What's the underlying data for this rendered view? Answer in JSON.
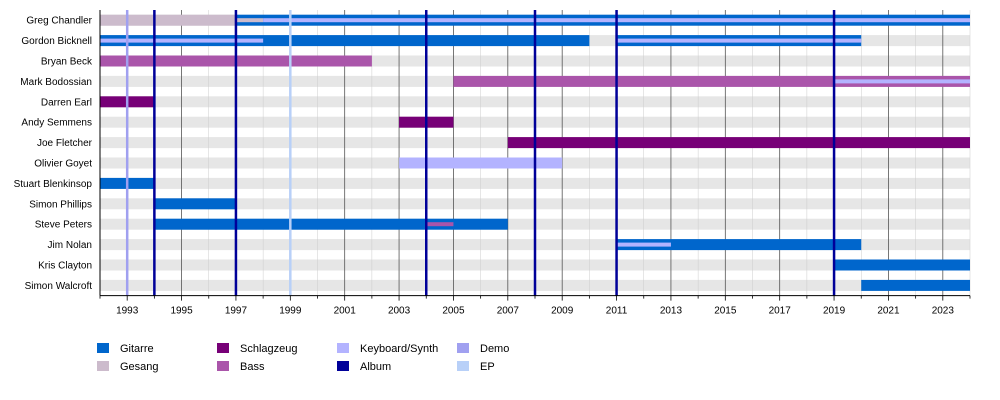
{
  "chart_data": {
    "type": "timeline",
    "x_range": [
      1992,
      2024
    ],
    "year_ticks": [
      1993,
      1995,
      1997,
      1999,
      2001,
      2003,
      2005,
      2007,
      2009,
      2011,
      2013,
      2015,
      2017,
      2019,
      2021,
      2023
    ],
    "roles": [
      {
        "id": "gitarre",
        "label": "Gitarre",
        "color": "#0066cc"
      },
      {
        "id": "gesang",
        "label": "Gesang",
        "color": "#ccbbcc"
      },
      {
        "id": "schlagzeug",
        "label": "Schlagzeug",
        "color": "#770077"
      },
      {
        "id": "bass",
        "label": "Bass",
        "color": "#aa55aa"
      },
      {
        "id": "keyboard",
        "label": "Keyboard/Synth",
        "color": "#b3b3ff"
      },
      {
        "id": "album",
        "label": "Album",
        "color": "#000099"
      },
      {
        "id": "demo",
        "label": "Demo",
        "color": "#a0a0f0"
      },
      {
        "id": "ep",
        "label": "EP",
        "color": "#b8d0f8"
      }
    ],
    "members": [
      {
        "name": "Greg Chandler",
        "bars": [
          {
            "role": "gesang",
            "start": 1992,
            "end": 1997
          },
          {
            "role": "gitarre",
            "start": 1997,
            "end": 2024
          },
          {
            "role": "gesang",
            "start": 1997,
            "end": 1998,
            "style": "stripe"
          },
          {
            "role": "keyboard",
            "start": 1998,
            "end": 2024,
            "style": "stripe"
          }
        ]
      },
      {
        "name": "Gordon Bicknell",
        "bars": [
          {
            "role": "gitarre",
            "start": 1992,
            "end": 2010
          },
          {
            "role": "keyboard",
            "start": 1992,
            "end": 1998,
            "style": "stripe"
          },
          {
            "role": "gitarre",
            "start": 2011,
            "end": 2020
          },
          {
            "role": "keyboard",
            "start": 2011,
            "end": 2020,
            "style": "stripe"
          }
        ]
      },
      {
        "name": "Bryan Beck",
        "bars": [
          {
            "role": "bass",
            "start": 1992,
            "end": 2002
          }
        ]
      },
      {
        "name": "Mark Bodossian",
        "bars": [
          {
            "role": "bass",
            "start": 2005,
            "end": 2024
          },
          {
            "role": "keyboard",
            "start": 2019,
            "end": 2024,
            "style": "stripe"
          }
        ]
      },
      {
        "name": "Darren Earl",
        "bars": [
          {
            "role": "schlagzeug",
            "start": 1992,
            "end": 1994
          }
        ]
      },
      {
        "name": "Andy Semmens",
        "bars": [
          {
            "role": "schlagzeug",
            "start": 2003,
            "end": 2005
          }
        ]
      },
      {
        "name": "Joe Fletcher",
        "bars": [
          {
            "role": "schlagzeug",
            "start": 2007,
            "end": 2024
          }
        ]
      },
      {
        "name": "Olivier Goyet",
        "bars": [
          {
            "role": "keyboard",
            "start": 2003,
            "end": 2009
          }
        ]
      },
      {
        "name": "Stuart Blenkinsop",
        "bars": [
          {
            "role": "gitarre",
            "start": 1992,
            "end": 1994
          }
        ]
      },
      {
        "name": "Simon Phillips",
        "bars": [
          {
            "role": "gitarre",
            "start": 1994,
            "end": 1997
          }
        ]
      },
      {
        "name": "Steve Peters",
        "bars": [
          {
            "role": "gitarre",
            "start": 1994,
            "end": 2007
          },
          {
            "role": "bass",
            "start": 2004,
            "end": 2005,
            "style": "stripe"
          }
        ]
      },
      {
        "name": "Jim Nolan",
        "bars": [
          {
            "role": "gitarre",
            "start": 2011,
            "end": 2020
          },
          {
            "role": "keyboard",
            "start": 2011,
            "end": 2013,
            "style": "stripe"
          }
        ]
      },
      {
        "name": "Kris Clayton",
        "bars": [
          {
            "role": "gitarre",
            "start": 2019,
            "end": 2024
          }
        ]
      },
      {
        "name": "Simon Walcroft",
        "bars": [
          {
            "role": "gitarre",
            "start": 2020,
            "end": 2024
          }
        ]
      }
    ],
    "release_markers": [
      {
        "type": "demo",
        "year": 1993
      },
      {
        "type": "album",
        "year": 1994
      },
      {
        "type": "album",
        "year": 1997
      },
      {
        "type": "ep",
        "year": 1999
      },
      {
        "type": "album",
        "year": 2004
      },
      {
        "type": "album",
        "year": 2008
      },
      {
        "type": "album",
        "year": 2011
      },
      {
        "type": "album",
        "year": 2019
      }
    ],
    "legend_placement": "bottom-left",
    "grid": true
  }
}
